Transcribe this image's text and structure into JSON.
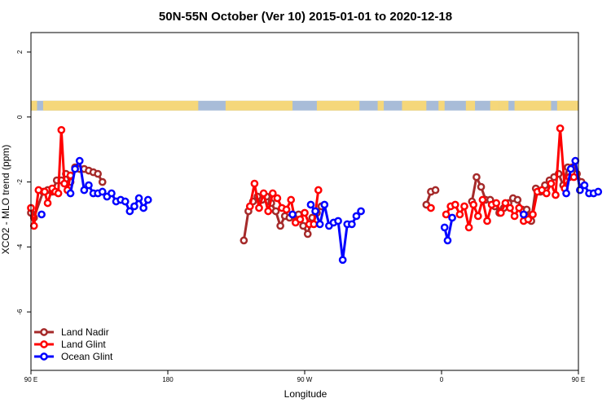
{
  "chart_data": {
    "type": "line",
    "title": "50N-55N October (Ver 10)   2015-01-01 to 2020-12-18",
    "xlabel": "Longitude",
    "ylabel": "XCO2 - MLO trend (ppm)",
    "xlim": [
      90,
      450
    ],
    "ylim": [
      -7.8,
      2.6
    ],
    "x_ticks": [
      {
        "value": 90,
        "label": "90 E"
      },
      {
        "value": 180,
        "label": "180"
      },
      {
        "value": 270,
        "label": "90 W"
      },
      {
        "value": 360,
        "label": "0"
      },
      {
        "value": 450,
        "label": "90 E"
      },
      {
        "value": 540,
        "label": "180"
      }
    ],
    "y_ticks": [
      {
        "value": 2,
        "label": "2"
      },
      {
        "value": 0,
        "label": "0"
      },
      {
        "value": -2,
        "label": "-2"
      },
      {
        "value": -4,
        "label": "-4"
      },
      {
        "value": -6,
        "label": "-6"
      }
    ],
    "land_mask": {
      "ocean_color": "#a8bcd8",
      "land_color": "#f5d77a",
      "y_range": [
        0.2,
        0.5
      ],
      "note_cells": [
        [
          90,
          94
        ],
        [
          98,
          200
        ],
        [
          218,
          262
        ],
        [
          278,
          306
        ],
        [
          318,
          322
        ],
        [
          334,
          350
        ],
        [
          358,
          362
        ],
        [
          376,
          382
        ],
        [
          392,
          398
        ],
        [
          398,
          404
        ],
        [
          408,
          432
        ],
        [
          436,
          460
        ],
        [
          472,
          492
        ]
      ]
    },
    "legend_position": "bottom-left",
    "series": [
      {
        "name": "Land Nadir",
        "color": "#a52a2a",
        "segments": [
          [
            [
              90,
              -2.95
            ],
            [
              92,
              -3.1
            ],
            [
              98,
              -2.3
            ],
            [
              101,
              -2.25
            ],
            [
              104,
              -2.3
            ],
            [
              107,
              -1.95
            ],
            [
              110,
              -1.95
            ],
            [
              113,
              -1.75
            ],
            [
              116,
              -2.0
            ],
            [
              119,
              -1.55
            ],
            [
              122,
              -1.6
            ],
            [
              125,
              -1.6
            ],
            [
              128,
              -1.65
            ],
            [
              131,
              -1.7
            ],
            [
              134,
              -1.75
            ],
            [
              137,
              -2.0
            ]
          ],
          [
            [
              230,
              -3.8
            ],
            [
              233,
              -2.9
            ],
            [
              236,
              -2.6
            ],
            [
              239,
              -2.45
            ],
            [
              242,
              -2.55
            ],
            [
              245,
              -2.45
            ],
            [
              248,
              -2.65
            ],
            [
              251,
              -2.9
            ],
            [
              254,
              -3.35
            ],
            [
              257,
              -3.05
            ],
            [
              260,
              -3.1
            ],
            [
              263,
              -3.05
            ],
            [
              266,
              -3.0
            ],
            [
              269,
              -3.35
            ],
            [
              272,
              -3.6
            ],
            [
              275,
              -3.1
            ],
            [
              278,
              -2.95
            ],
            [
              281,
              -2.75
            ]
          ],
          [
            [
              350,
              -2.7
            ],
            [
              353,
              -2.3
            ],
            [
              356,
              -2.25
            ]
          ],
          [
            [
              380,
              -2.6
            ],
            [
              383,
              -1.85
            ],
            [
              386,
              -2.15
            ],
            [
              389,
              -2.55
            ],
            [
              392,
              -2.55
            ],
            [
              395,
              -2.75
            ],
            [
              398,
              -2.95
            ],
            [
              401,
              -2.8
            ],
            [
              404,
              -2.65
            ],
            [
              407,
              -2.5
            ],
            [
              410,
              -2.55
            ],
            [
              413,
              -2.85
            ],
            [
              416,
              -2.85
            ],
            [
              419,
              -3.2
            ],
            [
              422,
              -2.2
            ],
            [
              425,
              -2.3
            ],
            [
              428,
              -2.1
            ],
            [
              431,
              -1.95
            ],
            [
              434,
              -1.85
            ],
            [
              437,
              -1.75
            ],
            [
              440,
              -2.1
            ],
            [
              443,
              -1.55
            ],
            [
              446,
              -1.55
            ],
            [
              449,
              -1.75
            ],
            [
              452,
              -2.0
            ]
          ]
        ]
      },
      {
        "name": "Land Glint",
        "color": "#ff0000",
        "segments": [
          [
            [
              90,
              -2.8
            ],
            [
              92,
              -3.35
            ],
            [
              95,
              -2.25
            ],
            [
              99,
              -2.3
            ],
            [
              101,
              -2.65
            ],
            [
              104,
              -2.2
            ],
            [
              106,
              -2.3
            ],
            [
              108,
              -2.35
            ],
            [
              110,
              -0.4
            ],
            [
              112,
              -2.05
            ],
            [
              114,
              -2.25
            ],
            [
              116,
              -1.8
            ]
          ],
          [
            [
              234,
              -2.75
            ],
            [
              237,
              -2.05
            ],
            [
              240,
              -2.8
            ],
            [
              243,
              -2.35
            ],
            [
              246,
              -2.9
            ],
            [
              249,
              -2.35
            ],
            [
              252,
              -2.5
            ],
            [
              255,
              -2.8
            ],
            [
              258,
              -2.85
            ],
            [
              261,
              -2.55
            ],
            [
              264,
              -3.25
            ],
            [
              267,
              -3.15
            ],
            [
              270,
              -2.95
            ],
            [
              273,
              -3.3
            ],
            [
              276,
              -3.3
            ],
            [
              279,
              -2.25
            ]
          ],
          [
            [
              353,
              -2.8
            ]
          ],
          [
            [
              363,
              -3.0
            ],
            [
              366,
              -2.75
            ],
            [
              369,
              -2.7
            ],
            [
              372,
              -3.0
            ],
            [
              375,
              -2.75
            ],
            [
              378,
              -3.4
            ],
            [
              381,
              -2.7
            ],
            [
              384,
              -3.05
            ],
            [
              387,
              -2.55
            ],
            [
              390,
              -3.2
            ],
            [
              393,
              -2.7
            ],
            [
              396,
              -2.65
            ],
            [
              399,
              -2.95
            ],
            [
              402,
              -2.65
            ],
            [
              405,
              -2.8
            ],
            [
              408,
              -3.05
            ],
            [
              411,
              -2.8
            ],
            [
              414,
              -3.2
            ],
            [
              417,
              -3.15
            ],
            [
              420,
              -3.0
            ],
            [
              423,
              -2.3
            ],
            [
              426,
              -2.25
            ],
            [
              429,
              -2.35
            ],
            [
              432,
              -2.05
            ],
            [
              435,
              -2.4
            ],
            [
              438,
              -0.35
            ],
            [
              441,
              -2.2
            ],
            [
              444,
              -1.85
            ],
            [
              447,
              -1.85
            ]
          ]
        ]
      },
      {
        "name": "Ocean Glint",
        "color": "#0000ff",
        "segments": [
          [
            [
              97,
              -3.0
            ]
          ],
          [
            [
              116,
              -2.35
            ],
            [
              119,
              -1.6
            ],
            [
              122,
              -1.35
            ],
            [
              125,
              -2.25
            ],
            [
              128,
              -2.1
            ],
            [
              131,
              -2.35
            ],
            [
              134,
              -2.35
            ],
            [
              137,
              -2.3
            ],
            [
              140,
              -2.45
            ],
            [
              143,
              -2.35
            ],
            [
              146,
              -2.6
            ],
            [
              149,
              -2.55
            ],
            [
              152,
              -2.6
            ],
            [
              155,
              -2.9
            ],
            [
              158,
              -2.75
            ],
            [
              161,
              -2.5
            ],
            [
              164,
              -2.8
            ],
            [
              167,
              -2.55
            ]
          ],
          [
            [
              262,
              -3.0
            ]
          ],
          [
            [
              274,
              -2.7
            ],
            [
              277,
              -2.9
            ],
            [
              280,
              -3.3
            ],
            [
              283,
              -2.7
            ],
            [
              286,
              -3.35
            ],
            [
              289,
              -3.25
            ],
            [
              292,
              -3.2
            ],
            [
              295,
              -4.4
            ],
            [
              298,
              -3.3
            ],
            [
              301,
              -3.3
            ],
            [
              304,
              -3.05
            ],
            [
              307,
              -2.9
            ]
          ],
          [
            [
              362,
              -3.4
            ],
            [
              364,
              -3.8
            ],
            [
              367,
              -3.1
            ]
          ],
          [
            [
              414,
              -3.0
            ]
          ],
          [
            [
              442,
              -2.35
            ],
            [
              445,
              -1.6
            ],
            [
              448,
              -1.35
            ],
            [
              451,
              -2.25
            ],
            [
              454,
              -2.1
            ],
            [
              457,
              -2.35
            ],
            [
              460,
              -2.35
            ],
            [
              463,
              -2.3
            ]
          ]
        ]
      }
    ]
  }
}
